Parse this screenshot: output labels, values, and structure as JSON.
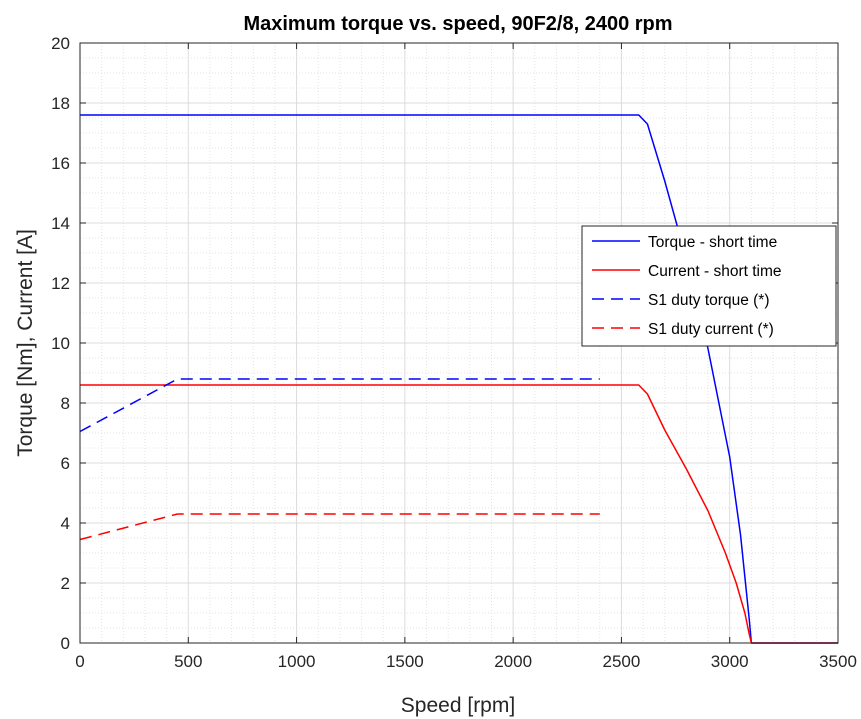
{
  "chart_data": {
    "type": "line",
    "title": "Maximum torque vs. speed, 90F2/8, 2400 rpm",
    "xlabel": "Speed [rpm]",
    "ylabel": "Torque [Nm], Current [A]",
    "xlim": [
      0,
      3500
    ],
    "ylim": [
      0,
      20
    ],
    "xticks": [
      0,
      500,
      1000,
      1500,
      2000,
      2500,
      3000,
      3500
    ],
    "yticks": [
      0,
      2,
      4,
      6,
      8,
      10,
      12,
      14,
      16,
      18,
      20
    ],
    "grid": true,
    "minor_grid": true,
    "legend_position": "right",
    "series": [
      {
        "name": "Torque - short time",
        "color": "#0000ff",
        "dash": "solid",
        "x": [
          0,
          2580,
          2620,
          2700,
          2800,
          2900,
          3000,
          3050,
          3090,
          3100,
          3500
        ],
        "y": [
          17.6,
          17.6,
          17.3,
          15.4,
          12.8,
          9.8,
          6.2,
          3.6,
          0.8,
          0,
          0
        ]
      },
      {
        "name": "Current - short time",
        "color": "#ff0000",
        "dash": "solid",
        "x": [
          0,
          2580,
          2620,
          2700,
          2800,
          2900,
          2980,
          3030,
          3070,
          3090,
          3100,
          3500
        ],
        "y": [
          8.6,
          8.6,
          8.3,
          7.1,
          5.8,
          4.4,
          3.0,
          2.0,
          1.0,
          0.3,
          0,
          0
        ]
      },
      {
        "name": "S1 duty torque (*)",
        "color": "#0000ff",
        "dash": "dashed",
        "x": [
          0,
          450,
          2400
        ],
        "y": [
          7.05,
          8.8,
          8.8
        ]
      },
      {
        "name": "S1 duty current (*)",
        "color": "#ff0000",
        "dash": "dashed",
        "x": [
          0,
          450,
          2400
        ],
        "y": [
          3.45,
          4.3,
          4.3
        ]
      }
    ]
  }
}
